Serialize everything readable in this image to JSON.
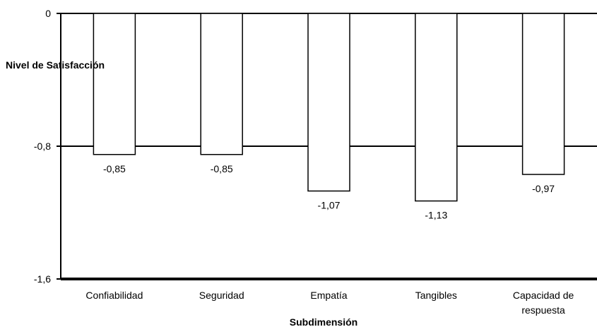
{
  "chart_data": {
    "type": "bar",
    "xlabel": "Subdimensión",
    "ylabel": "Nivel de Satisfacción",
    "categories": [
      [
        "Confiabilidad"
      ],
      [
        "Seguridad"
      ],
      [
        "Empatía"
      ],
      [
        "Tangibles"
      ],
      [
        "Capacidad de",
        "respuesta"
      ]
    ],
    "values": [
      -0.85,
      -0.85,
      -1.07,
      -1.13,
      -0.97
    ],
    "value_labels": [
      "-0,85",
      "-0,85",
      "-1,07",
      "-1,13",
      "-0,97"
    ],
    "ylim": [
      -1.6,
      0
    ],
    "yticks": [
      0,
      -0.8,
      -1.6
    ],
    "ytick_labels": [
      "0",
      "-0,8",
      "-1,6"
    ],
    "grid": true,
    "legend": "none",
    "colors": {
      "bar_fill": "#ffffff",
      "bar_stroke": "#000000",
      "axis": "#000000"
    }
  }
}
